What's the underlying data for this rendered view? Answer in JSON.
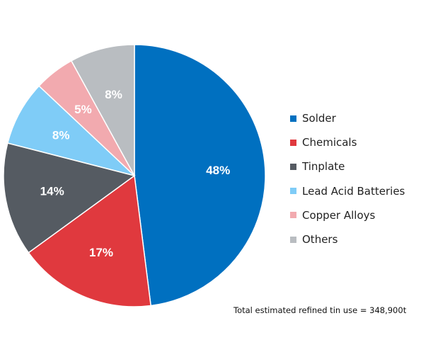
{
  "chart_data": {
    "type": "pie",
    "title": "",
    "categories": [
      "Solder",
      "Chemicals",
      "Tinplate",
      "Lead Acid Batteries",
      "Copper Alloys",
      "Others"
    ],
    "values": [
      48,
      17,
      14,
      8,
      5,
      8
    ],
    "value_labels": [
      "48%",
      "17%",
      "14%",
      "8%",
      "5%",
      "8%"
    ],
    "colors": [
      "#0070C0",
      "#E0393E",
      "#555B62",
      "#7FCCF7",
      "#F2AAAF",
      "#B9BDC1"
    ],
    "start_angle": "12 o'clock",
    "direction": "clockwise",
    "legend_position": "right",
    "annotation": "Total estimated refined tin use = 348,900t"
  }
}
